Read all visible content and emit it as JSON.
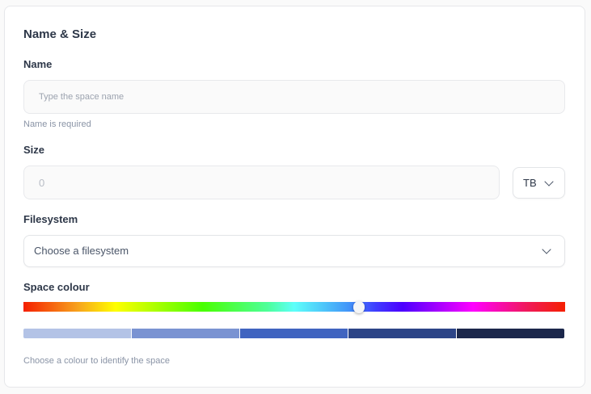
{
  "section_title": "Name & Size",
  "name": {
    "label": "Name",
    "placeholder": "Type the space name",
    "value": "",
    "helper": "Name is required"
  },
  "size": {
    "label": "Size",
    "placeholder": "0",
    "value": "",
    "unit": "TB"
  },
  "filesystem": {
    "label": "Filesystem",
    "selected": "Choose a filesystem"
  },
  "colour": {
    "label": "Space colour",
    "hue_position_percent": 62,
    "swatches": [
      "#b3c3e6",
      "#7a93d2",
      "#4064c0",
      "#2c4487",
      "#1b274b"
    ],
    "helper": "Choose a colour to identify the space"
  }
}
